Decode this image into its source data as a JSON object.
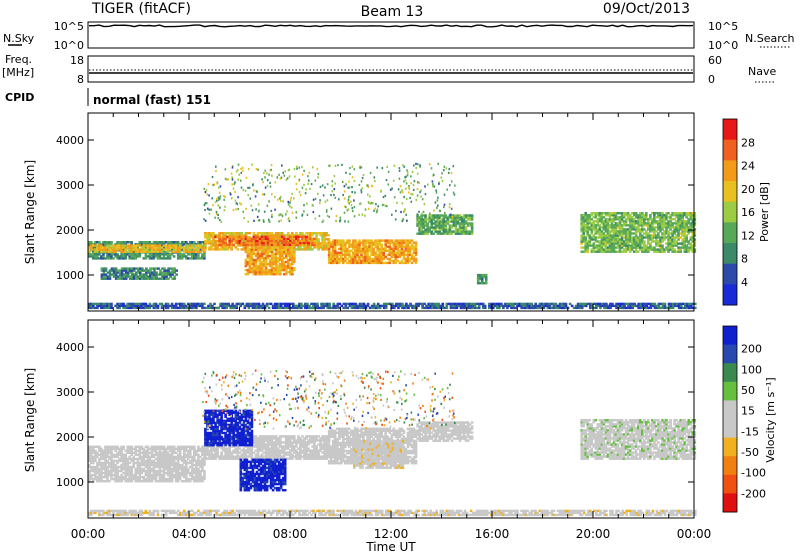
{
  "header": {
    "station": "TIGER (fitACF)",
    "beam": "Beam 13",
    "date": "09/Oct/2013"
  },
  "nsky_panel": {
    "left_label": "N.Sky",
    "right_label": "N.Search",
    "left_ticks": [
      "10^5",
      "10^0"
    ],
    "right_ticks": [
      "10^5",
      "10^0"
    ]
  },
  "freq_panel": {
    "left_label_line1": "Freq.",
    "left_label_line2": "[MHz]",
    "right_label": "Nave",
    "left_ticks": [
      "18",
      "8"
    ],
    "right_ticks": [
      "60",
      "0"
    ]
  },
  "cpid": {
    "label": "CPID",
    "value": "normal (fast) 151"
  },
  "x_axis": {
    "label": "Time UT",
    "ticks": [
      "00:00",
      "04:00",
      "08:00",
      "12:00",
      "16:00",
      "20:00",
      "00:00"
    ],
    "range_hours": [
      0,
      24
    ]
  },
  "colors": {
    "power_scale": [
      "#1a2ad6",
      "#2d4aa8",
      "#3a8a6a",
      "#58a85a",
      "#9ccc44",
      "#e8c020",
      "#f39a18",
      "#f06020",
      "#e81818"
    ],
    "velocity_scale": [
      "#1020d0",
      "#2848b0",
      "#3a8a50",
      "#66c040",
      "#c8c8c8",
      "#c8c8c8",
      "#f0b020",
      "#f08010",
      "#f05010",
      "#e01010"
    ]
  },
  "chart_data": [
    {
      "type": "heatmap",
      "name_label": "power",
      "ylabel": "Slant Range [km]",
      "yticks": [
        "1000",
        "2000",
        "3000",
        "4000"
      ],
      "ylim": [
        200,
        4600
      ],
      "xlim": [
        0,
        24
      ],
      "colorbar": {
        "label": "Power [dB]",
        "ticks": [
          "4",
          "8",
          "12",
          "16",
          "20",
          "24",
          "28"
        ],
        "range": [
          0,
          32
        ]
      },
      "bands": [
        {
          "t0": 0.0,
          "t1": 4.6,
          "r0": 1350,
          "r1": 1750,
          "value": 10
        },
        {
          "t0": 0.0,
          "t1": 4.6,
          "r0": 1500,
          "r1": 1650,
          "value": 20
        },
        {
          "t0": 0.5,
          "t1": 3.5,
          "r0": 900,
          "r1": 1150,
          "value": 9
        },
        {
          "t0": 4.6,
          "t1": 9.5,
          "r0": 1550,
          "r1": 1950,
          "value": 20
        },
        {
          "t0": 5.0,
          "t1": 9.0,
          "r0": 1650,
          "r1": 1850,
          "value": 26
        },
        {
          "t0": 6.2,
          "t1": 8.2,
          "r0": 1000,
          "r1": 1600,
          "value": 22
        },
        {
          "t0": 9.5,
          "t1": 13.0,
          "r0": 1250,
          "r1": 1750,
          "value": 22
        },
        {
          "t0": 13.0,
          "t1": 15.2,
          "r0": 1900,
          "r1": 2350,
          "value": 12
        },
        {
          "t0": 15.4,
          "t1": 15.8,
          "r0": 800,
          "r1": 1000,
          "value": 10
        },
        {
          "t0": 19.5,
          "t1": 24.0,
          "r0": 1500,
          "r1": 2400,
          "value": 14
        },
        {
          "t0": 0.0,
          "t1": 24.0,
          "r0": 250,
          "r1": 350,
          "value": 6
        }
      ]
    },
    {
      "type": "heatmap",
      "name_label": "velocity",
      "ylabel": "Slant Range [km]",
      "yticks": [
        "1000",
        "2000",
        "3000",
        "4000"
      ],
      "ylim": [
        200,
        4600
      ],
      "xlim": [
        0,
        24
      ],
      "colorbar": {
        "label": "Velocity [m s⁻¹]",
        "ticks": [
          "200",
          "100",
          "50",
          "15",
          "-15",
          "-50",
          "-100",
          "-200"
        ],
        "range": [
          -250,
          250
        ]
      },
      "bands": [
        {
          "t0": 0.0,
          "t1": 4.6,
          "r0": 1000,
          "r1": 1800,
          "value": 0
        },
        {
          "t0": 4.6,
          "t1": 9.5,
          "r0": 1500,
          "r1": 2000,
          "value": 0
        },
        {
          "t0": 4.6,
          "t1": 6.5,
          "r0": 1800,
          "r1": 2600,
          "value": 220
        },
        {
          "t0": 6.0,
          "t1": 7.8,
          "r0": 800,
          "r1": 1500,
          "value": 220
        },
        {
          "t0": 9.5,
          "t1": 13.0,
          "r0": 1400,
          "r1": 2200,
          "value": 0
        },
        {
          "t0": 10.5,
          "t1": 12.5,
          "r0": 1300,
          "r1": 1900,
          "value": -30
        },
        {
          "t0": 13.0,
          "t1": 15.2,
          "r0": 1900,
          "r1": 2350,
          "value": 0
        },
        {
          "t0": 19.5,
          "t1": 24.0,
          "r0": 1500,
          "r1": 2400,
          "value": 30
        },
        {
          "t0": 0.0,
          "t1": 24.0,
          "r0": 250,
          "r1": 350,
          "value": -30
        }
      ]
    }
  ]
}
